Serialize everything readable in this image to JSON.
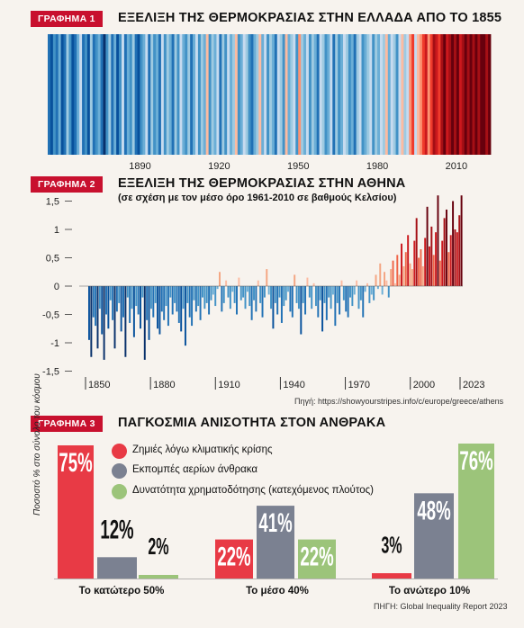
{
  "graph1": {
    "label": "ΓΡΑΦΗΜΑ 1",
    "title": "ΕΞΕΛΙΞΗ ΤΗΣ ΘΕΡΜΟΚΡΑΣΙΑΣ ΣΤΗΝ ΕΛΛΑΔΑ ΑΠΟ ΤΟ 1855"
  },
  "graph2": {
    "label": "ΓΡΑΦΗΜΑ 2",
    "title": "ΕΞΕΛΙΞΗ ΤΗΣ ΘΕΡΜΟΚΡΑΣΙΑΣ ΣΤΗΝ ΑΘΗΝΑ",
    "subtitle": "(σε σχέση με τον μέσο όρο 1961-2010 σε βαθμούς Κελσίου)",
    "source": "Πηγή: https://showyourstripes.info/c/europe/greece/athens"
  },
  "graph3": {
    "label": "ΓΡΑΦΗΜΑ 3",
    "title": "ΠΑΓΚΟΣΜΙΑ ΑΝΙΣΟΤΗΤΑ ΣΤΟΝ ΑΝΘΡΑΚΑ",
    "ylabel": "Ποσοστό % στο σύνολο του κόσμου",
    "source": "ΠΗΓΗ: Global Inequality Report 2023",
    "legend": [
      {
        "name": "Ζημιές λόγω κλιματικής κρίσης",
        "color": "#e83a45"
      },
      {
        "name": "Εκπομπές αερίων άνθρακα",
        "color": "#7b8191"
      },
      {
        "name": "Δυνατότητα χρηματοδότησης (κατεχόμενος πλούτος)",
        "color": "#9cc47a"
      }
    ]
  },
  "chart_data": [
    {
      "type": "heatmap",
      "title": "ΕΞΕΛΙΞΗ ΤΗΣ ΘΕΡΜΟΚΡΑΣΙΑΣ ΣΤΗΝ ΕΛΛΑΔΑ ΑΠΟ ΤΟ 1855",
      "x_start": 1855,
      "x_end": 2023,
      "xticks": [
        "1890",
        "1920",
        "1950",
        "1980",
        "2010"
      ],
      "palette": [
        "#08306b",
        "#08519c",
        "#2171b5",
        "#4292c6",
        "#6baed6",
        "#9ecae1",
        "#c6dbef",
        "#fcbba1",
        "#fc9272",
        "#ef3b2c",
        "#cb181d",
        "#a50f15",
        "#67000d"
      ],
      "stripe_levels": [
        2,
        1,
        3,
        2,
        4,
        1,
        2,
        5,
        3,
        1,
        2,
        4,
        6,
        2,
        3,
        1,
        5,
        2,
        3,
        4,
        2,
        0,
        3,
        5,
        2,
        4,
        1,
        3,
        6,
        2,
        4,
        3,
        5,
        2,
        1,
        3,
        4,
        6,
        2,
        5,
        3,
        4,
        2,
        6,
        3,
        5,
        4,
        2,
        5,
        3,
        6,
        4,
        3,
        5,
        2,
        4,
        6,
        3,
        5,
        4,
        7,
        3,
        5,
        4,
        6,
        2,
        5,
        3,
        6,
        4,
        5,
        7,
        3,
        4,
        6,
        5,
        3,
        2,
        4,
        5,
        7,
        4,
        6,
        3,
        5,
        4,
        2,
        6,
        5,
        3,
        7,
        4,
        5,
        6,
        3,
        8,
        5,
        4,
        6,
        3,
        5,
        4,
        2,
        6,
        5,
        3,
        4,
        6,
        2,
        5,
        3,
        4,
        6,
        5,
        3,
        4,
        2,
        5,
        6,
        3,
        4,
        5,
        6,
        3,
        5,
        4,
        6,
        5,
        7,
        4,
        6,
        5,
        3,
        6,
        7,
        5,
        6,
        8,
        9,
        6,
        7,
        8,
        9,
        10,
        8,
        9,
        11,
        10,
        9,
        11,
        12,
        10,
        11,
        12,
        11,
        12,
        10,
        11,
        12,
        11,
        12,
        11,
        12,
        11,
        12,
        12,
        11,
        12
      ]
    },
    {
      "type": "bar",
      "title": "ΕΞΕΛΙΞΗ ΤΗΣ ΘΕΡΜΟΚΡΑΣΙΑΣ ΣΤΗΝ ΑΘΗΝΑ",
      "subtitle": "(σε σχέση με τον μέσο όρο 1961-2010 σε βαθμούς Κελσίου)",
      "x_start": 1850,
      "x_end": 2023,
      "xticks": [
        "1850",
        "1880",
        "1910",
        "1940",
        "1970",
        "2000",
        "2023"
      ],
      "yticks": [
        "1,5",
        "1",
        "0,5",
        "0",
        "-0,5",
        "-1",
        "-1,5"
      ],
      "ylim": [
        -1.6,
        1.6
      ],
      "values": [
        -0.95,
        -1.25,
        -0.55,
        -0.7,
        -1.1,
        -0.4,
        -0.85,
        -1.3,
        -0.5,
        -0.75,
        -0.25,
        -0.6,
        -1.1,
        -0.45,
        -0.3,
        -0.8,
        -0.55,
        -1.25,
        -0.2,
        -0.65,
        -0.4,
        -0.9,
        -0.35,
        -0.5,
        -0.75,
        -0.2,
        -1.3,
        -0.6,
        -0.95,
        -0.4,
        -0.55,
        -0.3,
        -0.75,
        -0.85,
        -0.45,
        -0.6,
        -0.35,
        -0.7,
        -0.2,
        -0.5,
        -0.3,
        -0.45,
        -0.65,
        -0.8,
        -0.4,
        -1.05,
        -0.3,
        -0.55,
        -0.7,
        -0.25,
        -0.45,
        -0.35,
        -0.6,
        -0.2,
        -0.4,
        -0.3,
        -0.5,
        -0.25,
        -0.15,
        -0.35,
        -0.05,
        0.25,
        -0.45,
        -0.3,
        0.1,
        -0.2,
        -0.4,
        -0.1,
        -0.3,
        -0.5,
        0.15,
        -0.25,
        -0.2,
        -0.4,
        -0.1,
        -0.35,
        -0.6,
        -0.25,
        -0.45,
        0.1,
        -0.3,
        -0.55,
        -0.2,
        0.3,
        -0.15,
        -0.4,
        -0.75,
        -0.3,
        -0.5,
        -0.2,
        -0.65,
        -0.35,
        -0.25,
        -0.1,
        -0.45,
        -0.55,
        0.2,
        -0.3,
        -0.4,
        -0.85,
        -0.3,
        -0.5,
        0.15,
        -0.2,
        -0.4,
        0.05,
        -0.35,
        -0.55,
        -0.25,
        -0.8,
        -0.3,
        -0.6,
        -0.2,
        -0.4,
        -0.15,
        -0.7,
        -0.3,
        -0.5,
        0.1,
        -0.25,
        -0.45,
        -0.55,
        -0.2,
        -0.35,
        -0.15,
        0.1,
        -0.4,
        -0.25,
        -0.55,
        -0.1,
        0.05,
        -0.3,
        -0.15,
        -0.25,
        0.2,
        -0.05,
        0.4,
        -0.15,
        0.25,
        0.1,
        -0.2,
        0.3,
        0.45,
        0.05,
        0.55,
        0.2,
        0.75,
        0.35,
        0.6,
        0.9,
        0.4,
        0.3,
        0.8,
        1.2,
        0.5,
        0.65,
        0.35,
        0.85,
        1.4,
        0.7,
        1.05,
        0.55,
        0.95,
        1.6,
        0.45,
        0.8,
        1.2,
        1.35,
        0.6,
        0.9,
        1.5,
        1.0,
        0.95,
        1.25,
        1.6
      ]
    },
    {
      "type": "bar",
      "title": "ΠΑΓΚΟΣΜΙΑ ΑΝΙΣΟΤΗΤΑ ΣΤΟΝ ΑΝΘΡΑΚΑ",
      "ylabel": "Ποσοστό % στο σύνολο του κόσμου",
      "categories": [
        "Το κατώτερο 50%",
        "Το μέσο 40%",
        "Το ανώτερο 10%"
      ],
      "ylim": [
        0,
        80
      ],
      "series": [
        {
          "name": "Ζημιές λόγω κλιματικής κρίσης",
          "values": [
            75,
            22,
            3
          ],
          "labels": [
            "75%",
            "22%",
            "3%"
          ]
        },
        {
          "name": "Εκπομπές αερίων άνθρακα",
          "values": [
            12,
            41,
            48
          ],
          "labels": [
            "12%",
            "41%",
            "48%"
          ]
        },
        {
          "name": "Δυνατότητα χρηματοδότησης (κατεχόμενος πλούτος)",
          "values": [
            2,
            22,
            76
          ],
          "labels": [
            "2%",
            "22%",
            "76%"
          ]
        }
      ]
    }
  ]
}
